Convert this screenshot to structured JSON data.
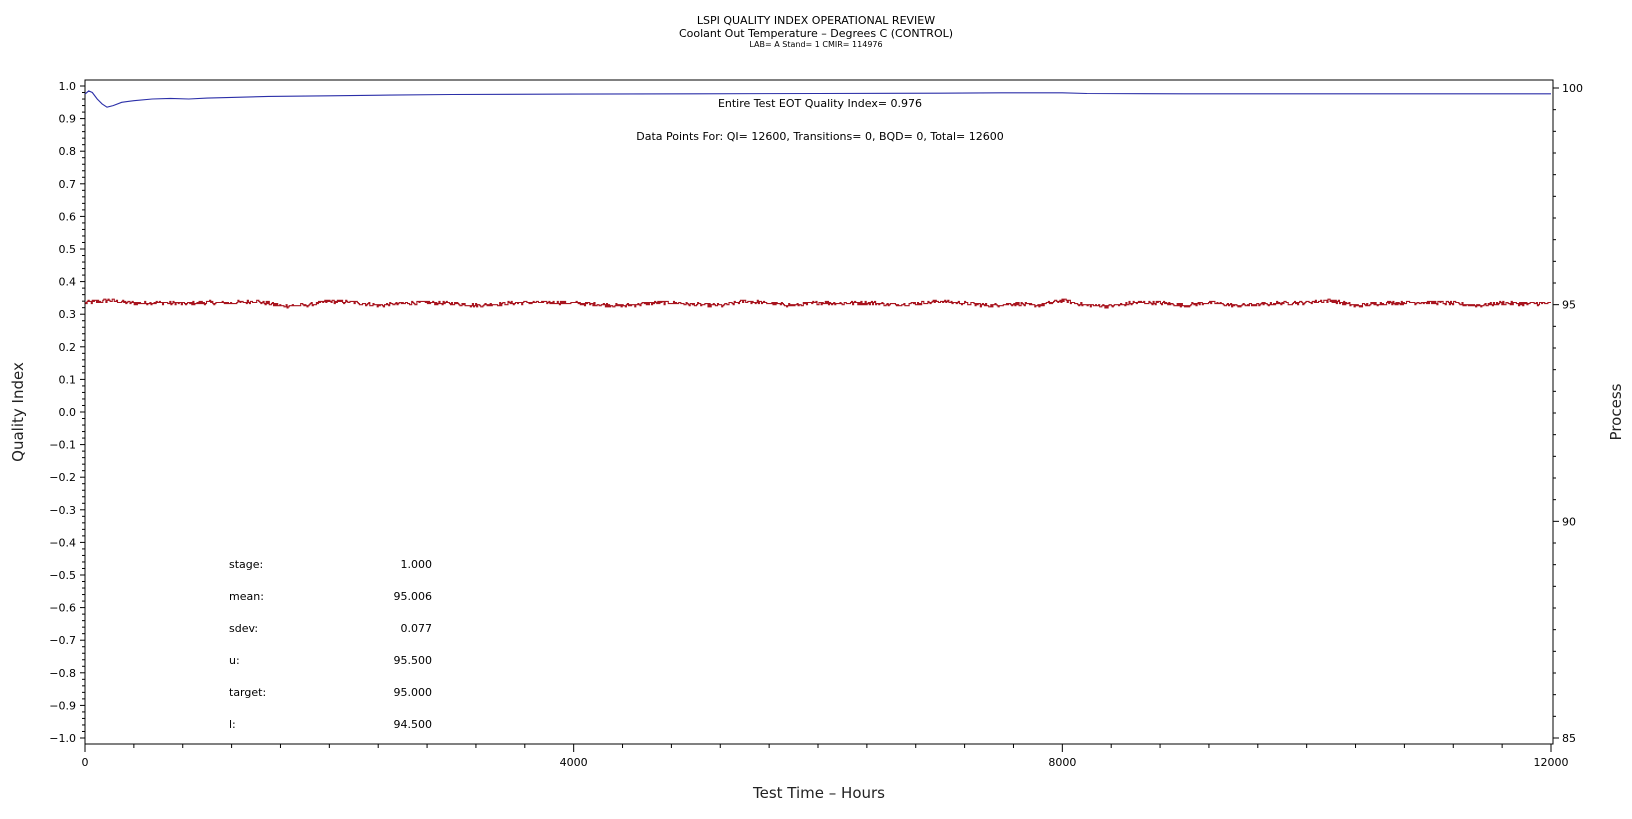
{
  "chart_data": {
    "type": "line",
    "title": "LSPI QUALITY INDEX OPERATIONAL REVIEW",
    "subtitle": "Coolant Out Temperature – Degrees C (CONTROL)",
    "subtitle2": "LAB= A Stand= 1 CMIR= 114976",
    "xlabel": "Test Time – Hours",
    "ylabel": "Quality Index",
    "y2label": "Process",
    "xlim": [
      0,
      12000
    ],
    "ylim": [
      -1.0,
      1.0
    ],
    "y2lim": [
      85,
      100
    ],
    "xticks": [
      0,
      4000,
      8000,
      12000
    ],
    "yticks": [
      -1.0,
      -0.9,
      -0.8,
      -0.7,
      -0.6,
      -0.5,
      -0.4,
      -0.3,
      -0.2,
      -0.1,
      0.0,
      0.1,
      0.2,
      0.3,
      0.4,
      0.5,
      0.6,
      0.7,
      0.8,
      0.9,
      1.0
    ],
    "y2ticks": [
      85,
      90,
      95,
      100
    ],
    "annotations": [
      "Entire Test EOT Quality Index=   0.976",
      "Data Points For: QI= 12600, Transitions=     0, BQD=     0, Total= 12600"
    ],
    "stats": [
      {
        "label": "stage:",
        "value": "1.000"
      },
      {
        "label": "mean:",
        "value": "95.006"
      },
      {
        "label": "sdev:",
        "value": "0.077"
      },
      {
        "label": "u:",
        "value": "95.500"
      },
      {
        "label": "target:",
        "value": "95.000"
      },
      {
        "label": "l:",
        "value": "94.500"
      }
    ],
    "series": [
      {
        "color": "#2b2fa8",
        "axis": "left",
        "x": [
          0,
          30,
          60,
          100,
          140,
          180,
          230,
          300,
          400,
          550,
          700,
          850,
          1000,
          1200,
          1500,
          2000,
          2500,
          3000,
          4000,
          5000,
          6000,
          7000,
          7500,
          8000,
          8200,
          9000,
          10000,
          11000,
          12000
        ],
        "y": [
          0.975,
          0.985,
          0.98,
          0.96,
          0.945,
          0.935,
          0.94,
          0.95,
          0.955,
          0.96,
          0.962,
          0.96,
          0.963,
          0.965,
          0.968,
          0.97,
          0.972,
          0.974,
          0.975,
          0.976,
          0.977,
          0.978,
          0.979,
          0.979,
          0.977,
          0.976,
          0.976,
          0.976,
          0.976
        ]
      },
      {
        "color": "#a8141e",
        "axis": "right",
        "x": [
          0,
          200,
          400,
          600,
          800,
          1000,
          1200,
          1400,
          1600,
          1800,
          2000,
          2200,
          2400,
          2600,
          2800,
          3000,
          3200,
          3400,
          3600,
          3800,
          4000,
          4200,
          4400,
          4600,
          4800,
          5000,
          5200,
          5400,
          5600,
          5800,
          6000,
          6200,
          6400,
          6600,
          6800,
          7000,
          7200,
          7400,
          7600,
          7800,
          8000,
          8200,
          8400,
          8600,
          8800,
          9000,
          9200,
          9400,
          9600,
          9800,
          10000,
          10200,
          10400,
          10600,
          10800,
          11000,
          11200,
          11400,
          11600,
          11800,
          12000
        ],
        "y": [
          95.05,
          95.1,
          95.03,
          95.05,
          95.02,
          95.05,
          95.04,
          95.08,
          94.97,
          94.98,
          95.08,
          95.05,
          94.98,
          95.03,
          95.05,
          95.03,
          94.98,
          95.02,
          95.05,
          95.05,
          95.04,
          95.0,
          94.97,
          95.03,
          95.05,
          95.0,
          94.98,
          95.08,
          95.03,
          94.98,
          95.05,
          95.03,
          95.05,
          95.0,
          95.03,
          95.08,
          95.03,
          94.98,
          95.02,
          94.98,
          95.1,
          94.98,
          94.97,
          95.05,
          95.04,
          94.98,
          95.05,
          94.98,
          95.0,
          95.04,
          95.05,
          95.1,
          94.97,
          95.03,
          95.05,
          95.05,
          95.03,
          94.98,
          95.04,
          95.02,
          95.03
        ]
      }
    ]
  }
}
